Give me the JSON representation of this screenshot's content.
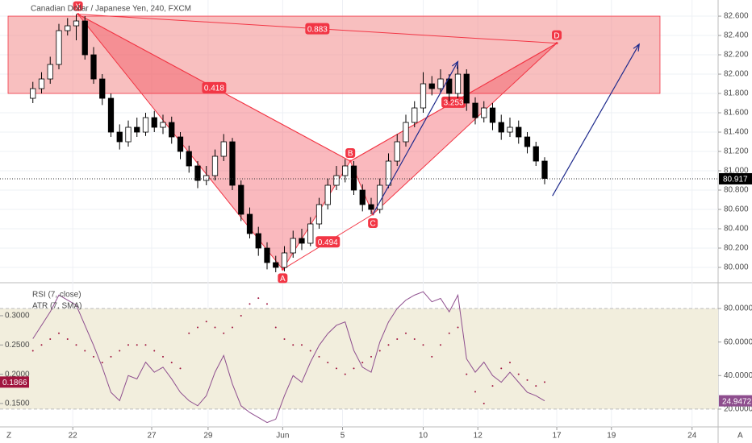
{
  "chart_data": [
    {
      "type": "candlestick",
      "title": "Canadian Dollar / Japanese Yen, 240, FXCM",
      "open": [
        81.75,
        81.85,
        81.95,
        82.1,
        82.45,
        82.5,
        82.55,
        82.2,
        81.95,
        81.75,
        81.4,
        81.3,
        81.45,
        81.4,
        81.55,
        81.45,
        81.5,
        81.35,
        81.2,
        81.05,
        80.9,
        80.95,
        81.15,
        81.3,
        80.85,
        80.55,
        80.35,
        80.2,
        80.05,
        80.0,
        80.15,
        80.3,
        80.25,
        80.45,
        80.65,
        80.85,
        80.95,
        81.05,
        80.8,
        80.65,
        80.6,
        80.85,
        81.1,
        81.3,
        81.5,
        81.65,
        81.9,
        81.85,
        81.95,
        81.8,
        82.0,
        81.7,
        81.55,
        81.65,
        81.5,
        81.4,
        81.45,
        81.35,
        81.25,
        81.1
      ],
      "high": [
        81.92,
        82.02,
        82.18,
        82.52,
        82.58,
        82.62,
        82.6,
        82.28,
        82.0,
        81.8,
        81.48,
        81.52,
        81.55,
        81.6,
        81.62,
        81.58,
        81.56,
        81.4,
        81.26,
        81.1,
        81.05,
        81.22,
        81.38,
        81.34,
        80.9,
        80.62,
        80.42,
        80.26,
        80.12,
        80.22,
        80.38,
        80.4,
        80.52,
        80.72,
        80.92,
        81.05,
        81.12,
        81.1,
        80.86,
        80.72,
        80.92,
        81.18,
        81.38,
        81.58,
        81.72,
        82.02,
        81.98,
        82.05,
        82.0,
        82.1,
        82.05,
        81.76,
        81.72,
        81.7,
        81.58,
        81.55,
        81.52,
        81.4,
        81.3,
        81.14
      ],
      "low": [
        81.7,
        81.8,
        81.9,
        82.05,
        82.4,
        82.35,
        82.15,
        81.9,
        81.68,
        81.35,
        81.22,
        81.25,
        81.35,
        81.36,
        81.4,
        81.38,
        81.28,
        81.12,
        80.98,
        80.82,
        80.85,
        80.9,
        81.1,
        80.8,
        80.48,
        80.3,
        80.12,
        79.98,
        79.95,
        79.96,
        80.1,
        80.18,
        80.22,
        80.4,
        80.6,
        80.8,
        80.88,
        80.75,
        80.58,
        80.55,
        80.56,
        80.82,
        81.05,
        81.25,
        81.45,
        81.6,
        81.78,
        81.8,
        81.72,
        81.75,
        81.62,
        81.48,
        81.5,
        81.42,
        81.32,
        81.35,
        81.28,
        81.18,
        81.05,
        80.86
      ],
      "close": [
        81.85,
        81.95,
        82.1,
        82.45,
        82.5,
        82.55,
        82.2,
        81.95,
        81.75,
        81.4,
        81.3,
        81.45,
        81.4,
        81.55,
        81.45,
        81.5,
        81.35,
        81.2,
        81.05,
        80.9,
        80.95,
        81.15,
        81.3,
        80.85,
        80.55,
        80.35,
        80.2,
        80.05,
        80.0,
        80.15,
        80.3,
        80.25,
        80.45,
        80.65,
        80.85,
        80.95,
        81.05,
        80.8,
        80.65,
        80.6,
        80.85,
        81.1,
        81.3,
        81.5,
        81.65,
        81.9,
        81.85,
        81.95,
        81.8,
        82.0,
        81.7,
        81.55,
        81.65,
        81.5,
        81.4,
        81.45,
        81.35,
        81.25,
        81.1,
        80.92
      ],
      "xlim": [
        -3.79,
        79
      ],
      "xticks": [
        {
          "value": 4.6,
          "label": "22"
        },
        {
          "value": 13.7,
          "label": "27"
        },
        {
          "value": 20.2,
          "label": "29"
        },
        {
          "value": 28.8,
          "label": "Jun"
        },
        {
          "value": 35.7,
          "label": "5"
        },
        {
          "value": 45.0,
          "label": "10"
        },
        {
          "value": 51.3,
          "label": "12"
        },
        {
          "value": 60.4,
          "label": "17"
        },
        {
          "value": 66.7,
          "label": "19"
        },
        {
          "value": 76.0,
          "label": "24"
        }
      ],
      "ylim": [
        79.85,
        82.767
      ],
      "yticks": [
        {
          "value": 80.0,
          "label": "80.000"
        },
        {
          "value": 80.2,
          "label": "80.200"
        },
        {
          "value": 80.4,
          "label": "80.400"
        },
        {
          "value": 80.6,
          "label": "80.600"
        },
        {
          "value": 80.8,
          "label": "80.800"
        },
        {
          "value": 81.0,
          "label": "81.000"
        },
        {
          "value": 81.2,
          "label": "81.200"
        },
        {
          "value": 81.4,
          "label": "81.400"
        },
        {
          "value": 81.6,
          "label": "81.600"
        },
        {
          "value": 81.8,
          "label": "81.800"
        },
        {
          "value": 82.0,
          "label": "82.000"
        },
        {
          "value": 82.2,
          "label": "82.200"
        },
        {
          "value": 82.4,
          "label": "82.400"
        },
        {
          "value": 82.6,
          "label": "82.600"
        }
      ],
      "grid": true,
      "last": 80.917,
      "zone": {
        "xlim": [
          -2.86,
          72.3
        ],
        "ylim": [
          81.8,
          82.6
        ],
        "color": "#f28b8b"
      },
      "pattern": {
        "color": "#f23645",
        "points": [
          {
            "label": "X",
            "x": 5.2,
            "y": 82.62
          },
          {
            "label": "A",
            "x": 28.8,
            "y": 79.98
          },
          {
            "label": "B",
            "x": 36.6,
            "y": 81.1
          },
          {
            "label": "C",
            "x": 39.2,
            "y": 80.55
          },
          {
            "label": "D",
            "x": 60.4,
            "y": 82.32
          }
        ],
        "ratios": [
          {
            "value": 0.883,
            "from": "X",
            "to": "D"
          },
          {
            "value": 0.418,
            "from": "X",
            "to": "B"
          },
          {
            "value": 0.494,
            "from": "A",
            "to": "C"
          },
          {
            "value": 3.253,
            "from": "B",
            "to": "D"
          }
        ]
      },
      "arrows": {
        "color": "#1e2a8c",
        "items": [
          {
            "x": [
              39.2,
              49.0
            ],
            "y": [
              80.55,
              82.13
            ]
          },
          {
            "x": [
              59.9,
              69.9
            ],
            "y": [
              80.74,
              82.31
            ]
          }
        ]
      }
    },
    {
      "type": "line",
      "series": [
        {
          "name": "RSI (7, close)",
          "axis": "y2",
          "color": "#8e4e8e",
          "values": [
            62,
            70,
            78,
            88,
            85,
            82,
            70,
            58,
            45,
            30,
            25,
            40,
            38,
            48,
            42,
            45,
            38,
            30,
            25,
            22,
            28,
            42,
            52,
            35,
            22,
            18,
            15,
            12,
            14,
            28,
            40,
            36,
            48,
            58,
            65,
            70,
            72,
            55,
            45,
            42,
            60,
            72,
            80,
            85,
            88,
            90,
            84,
            86,
            78,
            88,
            50,
            42,
            48,
            40,
            36,
            42,
            36,
            30,
            28,
            24.9472
          ]
        },
        {
          "name": "ATR (7, SMA)",
          "color": "#a0153e",
          "style": "dots",
          "values": [
            0.24,
            0.25,
            0.26,
            0.27,
            0.26,
            0.25,
            0.24,
            0.23,
            0.22,
            0.23,
            0.24,
            0.25,
            0.25,
            0.25,
            0.24,
            0.23,
            0.22,
            0.21,
            0.27,
            0.28,
            0.29,
            0.28,
            0.27,
            0.28,
            0.3,
            0.32,
            0.33,
            0.32,
            0.28,
            0.26,
            0.25,
            0.25,
            0.24,
            0.23,
            0.22,
            0.21,
            0.2,
            0.21,
            0.22,
            0.23,
            0.24,
            0.25,
            0.26,
            0.27,
            0.26,
            0.25,
            0.23,
            0.25,
            0.27,
            0.28,
            0.2,
            0.17,
            0.15,
            0.18,
            0.21,
            0.22,
            0.2,
            0.19,
            0.18,
            0.1866
          ]
        }
      ],
      "ylim": [
        0.11,
        0.355
      ],
      "yticks": [
        {
          "value": 0.15,
          "label": "0.1500"
        },
        {
          "value": 0.2,
          "label": "0.2000"
        },
        {
          "value": 0.25,
          "label": "0.2500"
        },
        {
          "value": 0.3,
          "label": "0.3000"
        }
      ],
      "y2lim": [
        9.4,
        94.9
      ],
      "y2ticks": [
        {
          "value": 20,
          "label": "20.0000"
        },
        {
          "value": 40,
          "label": "40.0000"
        },
        {
          "value": 60,
          "label": "60.0000"
        },
        {
          "value": 80,
          "label": "80.0000"
        }
      ],
      "band": {
        "range": [
          20,
          80
        ],
        "color": "#f2eedd"
      }
    }
  ],
  "ui": {
    "left_button": "Z",
    "right_button": "A"
  }
}
